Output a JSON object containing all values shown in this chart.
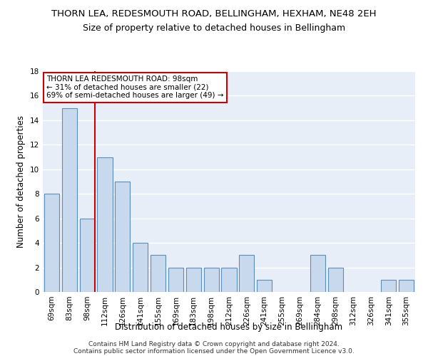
{
  "title": "THORN LEA, REDESMOUTH ROAD, BELLINGHAM, HEXHAM, NE48 2EH",
  "subtitle": "Size of property relative to detached houses in Bellingham",
  "xlabel": "Distribution of detached houses by size in Bellingham",
  "ylabel": "Number of detached properties",
  "categories": [
    "69sqm",
    "83sqm",
    "98sqm",
    "112sqm",
    "126sqm",
    "141sqm",
    "155sqm",
    "169sqm",
    "183sqm",
    "198sqm",
    "212sqm",
    "226sqm",
    "241sqm",
    "255sqm",
    "269sqm",
    "284sqm",
    "298sqm",
    "312sqm",
    "326sqm",
    "341sqm",
    "355sqm"
  ],
  "values": [
    8,
    15,
    6,
    11,
    9,
    4,
    3,
    2,
    2,
    2,
    2,
    3,
    1,
    0,
    0,
    3,
    2,
    0,
    0,
    1,
    1
  ],
  "bar_color": "#c9d9ed",
  "bar_edge_color": "#5b8db8",
  "highlight_index": 2,
  "highlight_line_color": "#cc0000",
  "ylim": [
    0,
    18
  ],
  "yticks": [
    0,
    2,
    4,
    6,
    8,
    10,
    12,
    14,
    16,
    18
  ],
  "background_color": "#e8eef7",
  "grid_color": "#ffffff",
  "annotation_text": "THORN LEA REDESMOUTH ROAD: 98sqm\n← 31% of detached houses are smaller (22)\n69% of semi-detached houses are larger (49) →",
  "footer_line1": "Contains HM Land Registry data © Crown copyright and database right 2024.",
  "footer_line2": "Contains public sector information licensed under the Open Government Licence v3.0.",
  "title_fontsize": 9.5,
  "subtitle_fontsize": 9,
  "xlabel_fontsize": 8.5,
  "ylabel_fontsize": 8.5,
  "tick_fontsize": 7.5,
  "annotation_fontsize": 7.5,
  "footer_fontsize": 6.5
}
